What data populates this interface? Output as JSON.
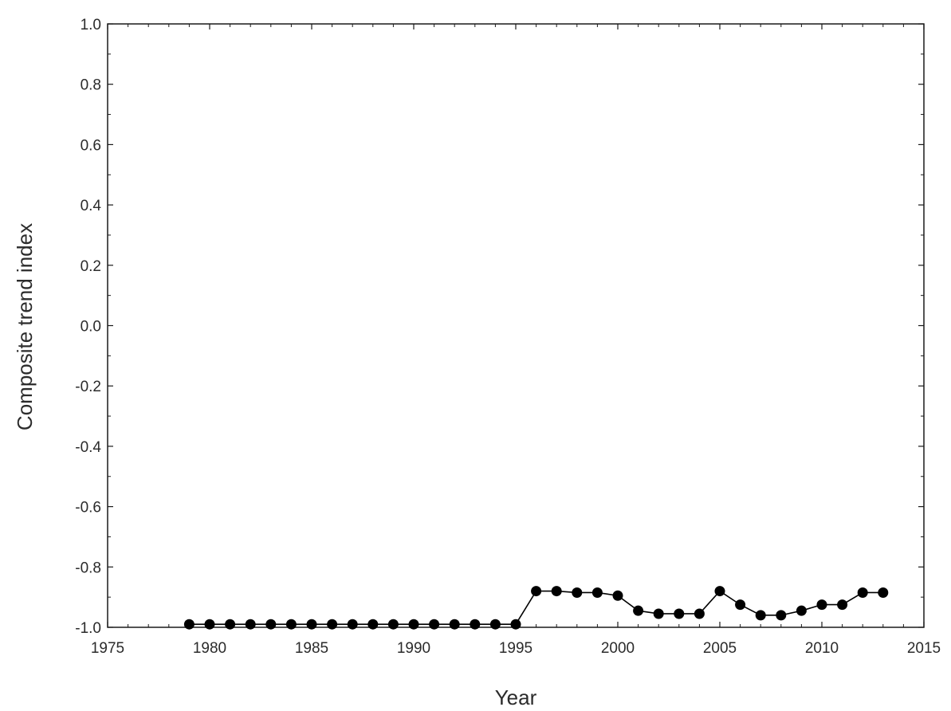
{
  "chart_data": {
    "type": "line",
    "title": "",
    "xlabel": "Year",
    "ylabel": "Composite trend index",
    "xlim": [
      1975,
      2015
    ],
    "ylim": [
      -1.0,
      1.0
    ],
    "x_ticks": [
      "1975",
      "1980",
      "1985",
      "1990",
      "1995",
      "2000",
      "2005",
      "2010",
      "2015"
    ],
    "y_ticks": [
      "1.0",
      "0.8",
      "0.6",
      "0.4",
      "0.2",
      "0.0",
      "-0.2",
      "-0.4",
      "-0.6",
      "-0.8",
      "-1.0"
    ],
    "grid": false,
    "series": [
      {
        "x": [
          1979,
          1980,
          1981,
          1982,
          1983,
          1984,
          1985,
          1986,
          1987,
          1988,
          1989,
          1990,
          1991,
          1992,
          1993,
          1994,
          1995,
          1996,
          1997,
          1998,
          1999,
          2000,
          2001,
          2002,
          2003,
          2004,
          2005,
          2006,
          2007,
          2008,
          2009,
          2010,
          2011,
          2012,
          2013
        ],
        "y": [
          -0.99,
          -0.99,
          -0.99,
          -0.99,
          -0.99,
          -0.99,
          -0.99,
          -0.99,
          -0.99,
          -0.99,
          -0.99,
          -0.99,
          -0.99,
          -0.99,
          -0.99,
          -0.99,
          -0.99,
          -0.88,
          -0.88,
          -0.885,
          -0.885,
          -0.895,
          -0.945,
          -0.955,
          -0.955,
          -0.955,
          -0.88,
          -0.925,
          -0.96,
          -0.96,
          -0.945,
          -0.925,
          -0.925,
          -0.885,
          -0.885
        ]
      }
    ]
  }
}
